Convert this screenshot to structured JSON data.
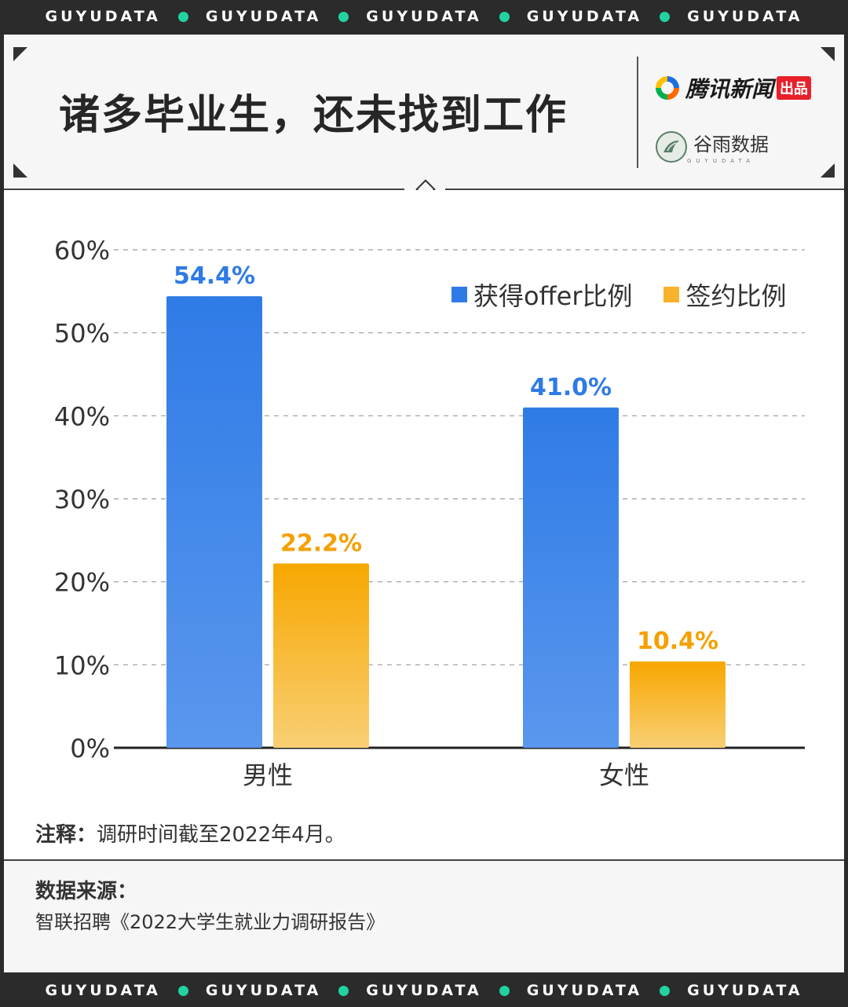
{
  "ticker": {
    "words": [
      "GUYUDATA",
      "GUYUDATA",
      "GUYUDATA",
      "GUYUDATA",
      "GUYUDATA"
    ]
  },
  "header": {
    "title": "诸多毕业生，还未找到工作",
    "brand_tencent": "腾讯新闻",
    "brand_tencent_tag": "出品",
    "brand_guyu": "谷雨数据",
    "brand_guyu_sub": "GUYUDATA"
  },
  "legend": {
    "offer": "获得offer比例",
    "signed": "签约比例"
  },
  "colors": {
    "offer": "#2f7be6",
    "signed": "#f7a700",
    "offer_label": "#2f7be6",
    "signed_label": "#f5a000"
  },
  "chart_data": {
    "type": "bar",
    "categories": [
      "男性",
      "女性"
    ],
    "series": [
      {
        "name": "获得offer比例",
        "values": [
          54.4,
          41.0
        ]
      },
      {
        "name": "签约比例",
        "values": [
          22.2,
          10.4
        ]
      }
    ],
    "value_labels": [
      [
        "54.4%",
        "41.0%"
      ],
      [
        "22.2%",
        "10.4%"
      ]
    ],
    "ylim": [
      0,
      60
    ],
    "yticks": [
      "0%",
      "10%",
      "20%",
      "30%",
      "40%",
      "50%",
      "60%"
    ],
    "grid": true,
    "legend_position": "top-right"
  },
  "note": {
    "label": "注释：",
    "text": "调研时间截至2022年4月。"
  },
  "source": {
    "title": "数据来源：",
    "text": "智联招聘《2022大学生就业力调研报告》"
  }
}
